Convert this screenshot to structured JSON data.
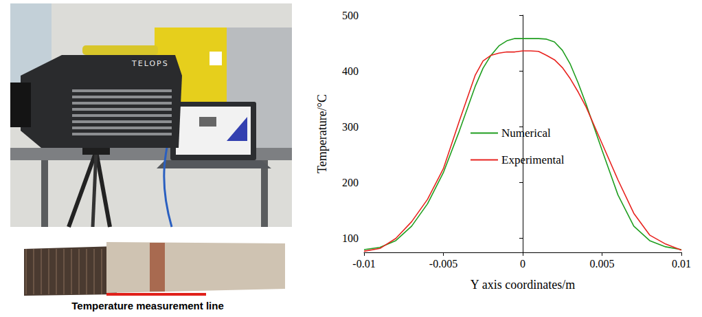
{
  "chart_data": {
    "type": "line",
    "x_label": "Y axis coordinates/m",
    "y_label": "Temperature/°C",
    "x": [
      -0.01,
      -0.009,
      -0.008,
      -0.007,
      -0.006,
      -0.005,
      -0.004,
      -0.003,
      -0.0025,
      -0.002,
      -0.0015,
      -0.001,
      -0.0005,
      0,
      0.0005,
      0.001,
      0.0015,
      0.002,
      0.0025,
      0.003,
      0.0035,
      0.004,
      0.005,
      0.006,
      0.007,
      0.008,
      0.009,
      0.01
    ],
    "series": [
      {
        "name": "Numerical",
        "color": "#1f9e1f",
        "values": [
          80,
          84,
          96,
          122,
          162,
          218,
          292,
          372,
          405,
          428,
          445,
          454,
          458,
          458,
          458,
          458,
          457,
          452,
          437,
          412,
          378,
          340,
          258,
          178,
          122,
          96,
          85,
          80
        ]
      },
      {
        "name": "Experimental",
        "color": "#e8231f",
        "values": [
          77,
          82,
          100,
          130,
          170,
          225,
          310,
          392,
          418,
          428,
          432,
          434,
          434,
          436,
          436,
          435,
          428,
          420,
          406,
          386,
          362,
          335,
          270,
          205,
          145,
          106,
          90,
          79
        ]
      }
    ],
    "xlim": [
      -0.01,
      0.01
    ],
    "xticks": [
      -0.01,
      -0.005,
      0,
      0.005,
      0.01
    ],
    "ylim": [
      75,
      500
    ],
    "yticks": [
      100,
      200,
      300,
      400,
      500
    ],
    "grid": false,
    "legend": "left"
  },
  "photo": {
    "camera_brand": "TELOPS",
    "caption": "Temperature measurement line"
  }
}
